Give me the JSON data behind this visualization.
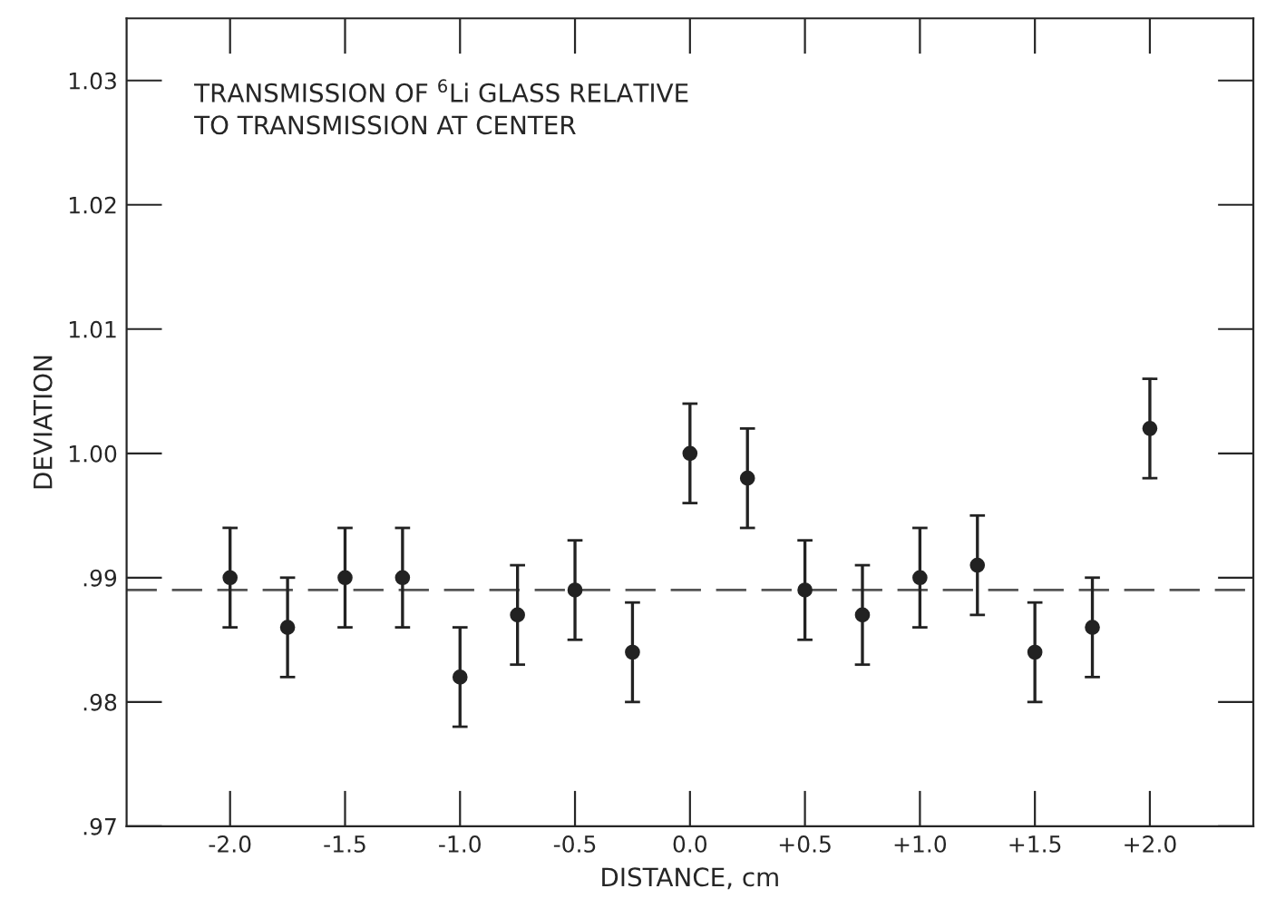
{
  "chart_data": {
    "type": "scatter",
    "xlabel": "DISTANCE, cm",
    "ylabel": "DEVIATION",
    "annotations": [
      "TRANSMISSION OF $^{6}$Li GLASS RELATIVE\nTO TRANSMISSION AT CENTER"
    ],
    "x": [
      -2.0,
      -1.75,
      -1.5,
      -1.25,
      -1.0,
      -0.75,
      -0.5,
      -0.25,
      0.0,
      0.25,
      0.5,
      0.75,
      1.0,
      1.25,
      1.5,
      1.75,
      2.0
    ],
    "series": [
      {
        "color": "#222222",
        "values": [
          0.99,
          0.986,
          0.99,
          0.99,
          0.982,
          0.987,
          0.989,
          0.984,
          1.0,
          0.998,
          0.989,
          0.987,
          0.99,
          0.991,
          0.984,
          0.986,
          1.002
        ],
        "errors": [
          0.004,
          0.004,
          0.004,
          0.004,
          0.004,
          0.004,
          0.004,
          0.004,
          0.004,
          0.004,
          0.004,
          0.004,
          0.004,
          0.004,
          0.004,
          0.004,
          0.004
        ]
      }
    ],
    "marker": "circle",
    "ref_lines": [
      {
        "axis": "y",
        "value": 0.989,
        "line_style": "dashed"
      }
    ],
    "xlim": [
      -2.45,
      2.45
    ],
    "xticks": [
      {
        "value": -2.0,
        "label": "-2.0"
      },
      {
        "value": -1.5,
        "label": "-1.5"
      },
      {
        "value": -1.0,
        "label": "-1.0"
      },
      {
        "value": -0.5,
        "label": "-0.5"
      },
      {
        "value": 0.0,
        "label": "0.0"
      },
      {
        "value": 0.5,
        "label": "+0.5"
      },
      {
        "value": 1.0,
        "label": "+1.0"
      },
      {
        "value": 1.5,
        "label": "+1.5"
      },
      {
        "value": 2.0,
        "label": "+2.0"
      }
    ],
    "ylim": [
      0.97,
      1.035
    ],
    "yticks": [
      {
        "value": 0.97,
        "label": ".97"
      },
      {
        "value": 0.98,
        "label": ".98"
      },
      {
        "value": 0.99,
        "label": ".99"
      },
      {
        "value": 1.0,
        "label": "1.00"
      },
      {
        "value": 1.01,
        "label": "1.01"
      },
      {
        "value": 1.02,
        "label": "1.02"
      },
      {
        "value": 1.03,
        "label": "1.03"
      }
    ],
    "grid": false,
    "legend": false
  }
}
